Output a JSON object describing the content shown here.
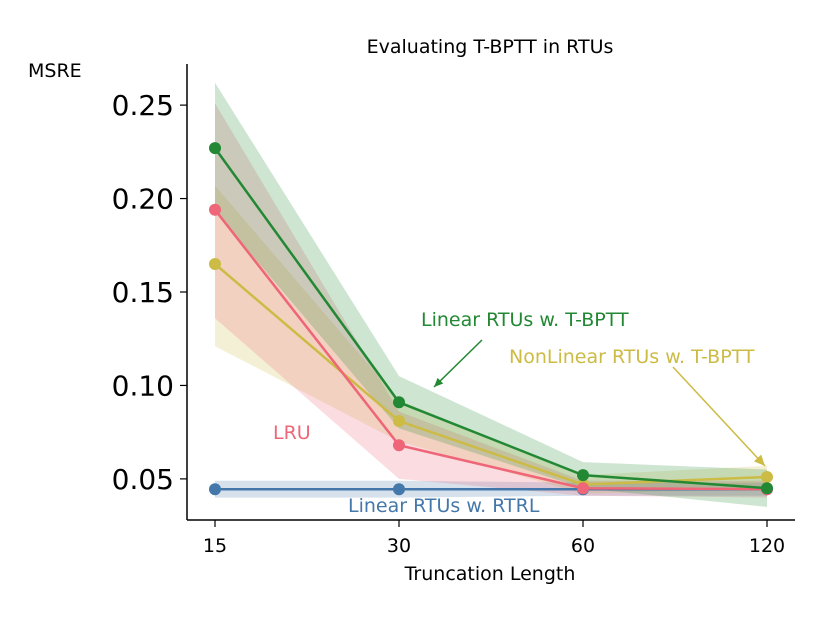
{
  "chart_data": {
    "type": "line",
    "title": "Evaluating T-BPTT in RTUs",
    "xlabel": "Truncation Length",
    "ylabel": "MSRE",
    "categories": [
      "15",
      "30",
      "60",
      "120"
    ],
    "yticks": [
      "0.05",
      "0.10",
      "0.15",
      "0.20",
      "0.25"
    ],
    "ylim": [
      0.028,
      0.272
    ],
    "grid": false,
    "series": [
      {
        "name": "Linear RTUs w. RTRL",
        "color": "#4477aa",
        "values": [
          0.0445,
          0.0445,
          0.0445,
          0.0445
        ],
        "lower": [
          0.04,
          0.04,
          0.041,
          0.041
        ],
        "upper": [
          0.049,
          0.049,
          0.048,
          0.048
        ]
      },
      {
        "name": "NonLinear RTUs w. T-BPTT",
        "color": "#ccbb44",
        "values": [
          0.165,
          0.081,
          0.047,
          0.051
        ],
        "lower": [
          0.121,
          0.07,
          0.042,
          0.045
        ],
        "upper": [
          0.207,
          0.092,
          0.052,
          0.057
        ]
      },
      {
        "name": "LRU",
        "color": "#ee6677",
        "values": [
          0.194,
          0.068,
          0.045,
          0.0445
        ],
        "lower": [
          0.136,
          0.05,
          0.041,
          0.04
        ],
        "upper": [
          0.251,
          0.086,
          0.049,
          0.049
        ]
      },
      {
        "name": "Linear RTUs w. T-BPTT",
        "color": "#228833",
        "values": [
          0.227,
          0.091,
          0.052,
          0.045
        ],
        "lower": [
          0.193,
          0.077,
          0.045,
          0.035
        ],
        "upper": [
          0.262,
          0.105,
          0.059,
          0.055
        ]
      }
    ],
    "annotations": [
      {
        "text": "Linear RTUs w. T-BPTT",
        "color": "#228833"
      },
      {
        "text": "NonLinear RTUs w. T-BPTT",
        "color": "#ccbb44"
      },
      {
        "text": "LRU",
        "color": "#ee6677"
      },
      {
        "text": "Linear RTUs w. RTRL",
        "color": "#4477aa"
      }
    ]
  }
}
